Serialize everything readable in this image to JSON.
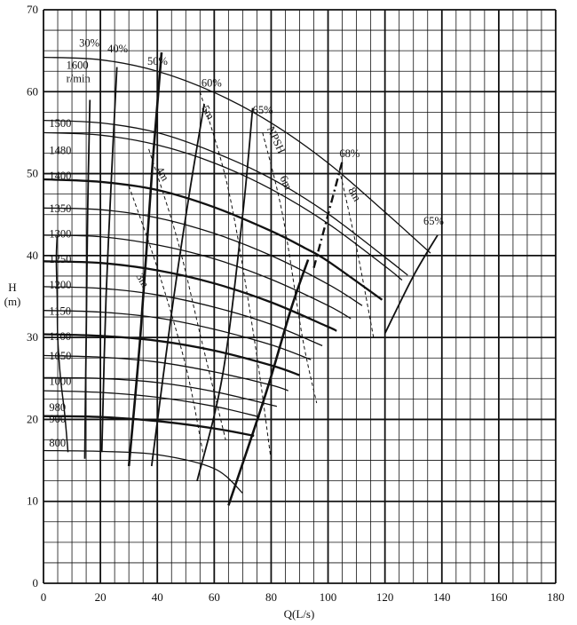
{
  "chart_data": {
    "type": "line",
    "title": "",
    "xlabel": "Q(L/s)",
    "ylabel": "H",
    "ylabel_unit": "(m)",
    "xlim": [
      0,
      180
    ],
    "ylim": [
      0,
      70
    ],
    "x_ticks": [
      0,
      20,
      40,
      60,
      80,
      100,
      120,
      140,
      160,
      180
    ],
    "y_ticks": [
      0,
      10,
      20,
      30,
      40,
      50,
      60,
      70
    ],
    "grid": true,
    "speed_curves": [
      {
        "name": "1600",
        "unit": "r/min",
        "points": [
          [
            0,
            64.2
          ],
          [
            20,
            63.9
          ],
          [
            40,
            62.5
          ],
          [
            60,
            59.9
          ],
          [
            80,
            56.2
          ],
          [
            100,
            51.3
          ],
          [
            120,
            45.3
          ],
          [
            136,
            40.3
          ]
        ]
      },
      {
        "name": "1500",
        "points": [
          [
            0,
            56.5
          ],
          [
            20,
            56.2
          ],
          [
            40,
            55.0
          ],
          [
            60,
            52.6
          ],
          [
            80,
            49.4
          ],
          [
            100,
            45.1
          ],
          [
            120,
            39.8
          ],
          [
            128,
            37.6
          ]
        ]
      },
      {
        "name": "1480",
        "points": [
          [
            0,
            55.0
          ],
          [
            20,
            54.7
          ],
          [
            40,
            53.5
          ],
          [
            60,
            51.3
          ],
          [
            80,
            48.1
          ],
          [
            100,
            43.9
          ],
          [
            120,
            38.7
          ],
          [
            126,
            37.0
          ]
        ]
      },
      {
        "name": "1400",
        "points": [
          [
            0,
            49.3
          ],
          [
            20,
            49.0
          ],
          [
            40,
            48.0
          ],
          [
            60,
            45.9
          ],
          [
            80,
            43.0
          ],
          [
            92,
            40.9
          ],
          [
            100,
            39.3
          ],
          [
            119,
            34.6
          ]
        ]
      },
      {
        "name": "1350",
        "points": [
          [
            0,
            45.8
          ],
          [
            20,
            45.6
          ],
          [
            40,
            44.6
          ],
          [
            60,
            42.7
          ],
          [
            80,
            40.0
          ],
          [
            100,
            36.5
          ],
          [
            112,
            33.9
          ]
        ]
      },
      {
        "name": "1300",
        "points": [
          [
            0,
            42.5
          ],
          [
            20,
            42.3
          ],
          [
            40,
            41.3
          ],
          [
            60,
            39.6
          ],
          [
            80,
            37.1
          ],
          [
            100,
            33.9
          ],
          [
            108,
            32.3
          ]
        ]
      },
      {
        "name": "1250",
        "points": [
          [
            0,
            39.3
          ],
          [
            20,
            39.1
          ],
          [
            40,
            38.2
          ],
          [
            60,
            36.6
          ],
          [
            80,
            34.3
          ],
          [
            100,
            31.3
          ],
          [
            103,
            30.8
          ]
        ]
      },
      {
        "name": "1200",
        "points": [
          [
            0,
            36.2
          ],
          [
            20,
            36.0
          ],
          [
            40,
            35.2
          ],
          [
            60,
            33.7
          ],
          [
            80,
            31.6
          ],
          [
            98,
            29.0
          ]
        ]
      },
      {
        "name": "1150",
        "points": [
          [
            0,
            33.3
          ],
          [
            20,
            33.1
          ],
          [
            40,
            32.4
          ],
          [
            60,
            31.0
          ],
          [
            80,
            29.1
          ],
          [
            94,
            27.3
          ]
        ]
      },
      {
        "name": "1100",
        "points": [
          [
            0,
            30.4
          ],
          [
            20,
            30.2
          ],
          [
            40,
            29.6
          ],
          [
            60,
            28.4
          ],
          [
            80,
            26.6
          ],
          [
            90,
            25.4
          ]
        ]
      },
      {
        "name": "1050",
        "points": [
          [
            0,
            27.8
          ],
          [
            20,
            27.6
          ],
          [
            40,
            27.0
          ],
          [
            60,
            25.8
          ],
          [
            80,
            24.2
          ],
          [
            86,
            23.5
          ]
        ]
      },
      {
        "name": "1000",
        "points": [
          [
            0,
            25.1
          ],
          [
            20,
            25.0
          ],
          [
            40,
            24.5
          ],
          [
            60,
            23.4
          ],
          [
            82,
            21.6
          ]
        ]
      },
      {
        "name": "980",
        "points": [
          [
            0,
            23.5
          ],
          [
            20,
            23.3
          ],
          [
            40,
            22.7
          ],
          [
            60,
            21.6
          ],
          [
            76,
            20.3
          ]
        ]
      },
      {
        "name": "900",
        "points": [
          [
            0,
            20.4
          ],
          [
            20,
            20.3
          ],
          [
            40,
            19.8
          ],
          [
            60,
            18.9
          ],
          [
            74,
            18.0
          ]
        ]
      },
      {
        "name": "800",
        "points": [
          [
            0,
            16.2
          ],
          [
            20,
            16.1
          ],
          [
            40,
            15.7
          ],
          [
            60,
            14.0
          ],
          [
            70,
            11.0
          ]
        ]
      }
    ],
    "efficiency_curves": [
      {
        "name": "30%",
        "points": [
          [
            14.5,
            15.2
          ],
          [
            15.0,
            30.0
          ],
          [
            15.5,
            45.0
          ],
          [
            16.3,
            59.0
          ]
        ]
      },
      {
        "name": "40%",
        "points": [
          [
            20.5,
            16.0
          ],
          [
            22.0,
            35.0
          ],
          [
            24.5,
            54.0
          ],
          [
            25.8,
            63.0
          ]
        ]
      },
      {
        "name": "50%",
        "points": [
          [
            30.0,
            14.3
          ],
          [
            34.0,
            30.0
          ],
          [
            38.5,
            52.0
          ],
          [
            41.5,
            64.8
          ]
        ]
      },
      {
        "name": "60%",
        "points": [
          [
            38.0,
            14.3
          ],
          [
            45.0,
            33.0
          ],
          [
            51.0,
            47.0
          ],
          [
            56.5,
            58.5
          ]
        ]
      },
      {
        "name": "65%",
        "points": [
          [
            54.0,
            12.5
          ],
          [
            63.0,
            25.5
          ],
          [
            70.0,
            45.0
          ],
          [
            73.5,
            58.0
          ]
        ]
      },
      {
        "name": "65%",
        "points": [
          [
            65.0,
            9.5
          ],
          [
            78.0,
            23.0
          ],
          [
            87.0,
            33.5
          ],
          [
            93.0,
            39.5
          ]
        ]
      },
      {
        "name": "68%",
        "points": [
          [
            95.0,
            38.5
          ],
          [
            100.0,
            45.0
          ],
          [
            105.0,
            51.5
          ]
        ]
      },
      {
        "name": "65%",
        "points": [
          [
            120.0,
            30.5
          ],
          [
            130.0,
            37.5
          ],
          [
            138.5,
            42.5
          ]
        ]
      }
    ],
    "npsh_curves": [
      {
        "name": "3m",
        "points": [
          [
            30.0,
            48.5
          ],
          [
            40.0,
            38.5
          ],
          [
            50.0,
            26.5
          ],
          [
            56.0,
            16.0
          ]
        ]
      },
      {
        "name": "4m",
        "points": [
          [
            37.0,
            53.0
          ],
          [
            47.0,
            42.0
          ],
          [
            56.0,
            29.0
          ],
          [
            64.0,
            17.5
          ]
        ]
      },
      {
        "name": "5m",
        "points": [
          [
            55.0,
            60.0
          ],
          [
            65.0,
            48.0
          ],
          [
            74.0,
            30.0
          ],
          [
            80.0,
            15.0
          ]
        ]
      },
      {
        "name": "NPSH 6m",
        "points": [
          [
            77.0,
            55.0
          ],
          [
            84.0,
            45.0
          ],
          [
            91.0,
            30.0
          ],
          [
            96.0,
            22.0
          ]
        ]
      },
      {
        "name": "8m",
        "points": [
          [
            104.0,
            50.5
          ],
          [
            110.0,
            41.0
          ],
          [
            116.0,
            30.0
          ]
        ]
      }
    ],
    "boundary_curves": [
      {
        "name": "left",
        "points": [
          [
            8.6,
            16.0
          ],
          [
            7.5,
            20.5
          ],
          [
            6.0,
            25.0
          ],
          [
            5.0,
            30.0
          ],
          [
            4.8,
            35.0
          ],
          [
            4.5,
            39.5
          ],
          [
            4.8,
            42.5
          ]
        ]
      }
    ],
    "speed_labels": [
      {
        "text": "1600",
        "unit": "r/min",
        "x": 8,
        "y": 62.8
      },
      {
        "text": "1500",
        "x": 2,
        "y": 55.7
      },
      {
        "text": "1480",
        "x": 2,
        "y": 52.4
      },
      {
        "text": "1400",
        "x": 2,
        "y": 49.3
      },
      {
        "text": "1350",
        "x": 2,
        "y": 45.3
      },
      {
        "text": "1300",
        "x": 2,
        "y": 42.2
      },
      {
        "text": "1250",
        "x": 2,
        "y": 39.1
      },
      {
        "text": "1200",
        "x": 2,
        "y": 36.0
      },
      {
        "text": "1150",
        "x": 2,
        "y": 32.8
      },
      {
        "text": "1100",
        "x": 2,
        "y": 29.7
      },
      {
        "text": "1050",
        "x": 2,
        "y": 27.3
      },
      {
        "text": "1000",
        "x": 2,
        "y": 24.2
      },
      {
        "text": "980",
        "x": 2,
        "y": 21.0
      },
      {
        "text": "900",
        "x": 2,
        "y": 19.6
      },
      {
        "text": "800",
        "x": 2,
        "y": 16.7
      }
    ],
    "efficiency_labels": [
      {
        "text": "30%",
        "x": 12.5,
        "y": 65.5
      },
      {
        "text": "40%",
        "x": 22.5,
        "y": 64.8
      },
      {
        "text": "50%",
        "x": 36.5,
        "y": 63.3
      },
      {
        "text": "60%",
        "x": 55.5,
        "y": 60.6
      },
      {
        "text": "65%",
        "x": 73.5,
        "y": 57.3
      },
      {
        "text": "68%",
        "x": 104.0,
        "y": 52.0
      },
      {
        "text": "65%",
        "x": 133.5,
        "y": 43.8
      }
    ],
    "npsh_labels": [
      {
        "text": "3m",
        "x": 32.5,
        "y": 37.5,
        "rotate": 60
      },
      {
        "text": "4m",
        "x": 39.5,
        "y": 50.5,
        "rotate": 60
      },
      {
        "text": "5m",
        "x": 55.5,
        "y": 58.0,
        "rotate": 60
      },
      {
        "text": "NPSH",
        "x": 78.5,
        "y": 55.5,
        "rotate": 65
      },
      {
        "text": "6m",
        "x": 83.0,
        "y": 49.5,
        "rotate": 65
      },
      {
        "text": "8m",
        "x": 107.0,
        "y": 48.0,
        "rotate": 60
      }
    ],
    "unit_label": "r/min"
  }
}
